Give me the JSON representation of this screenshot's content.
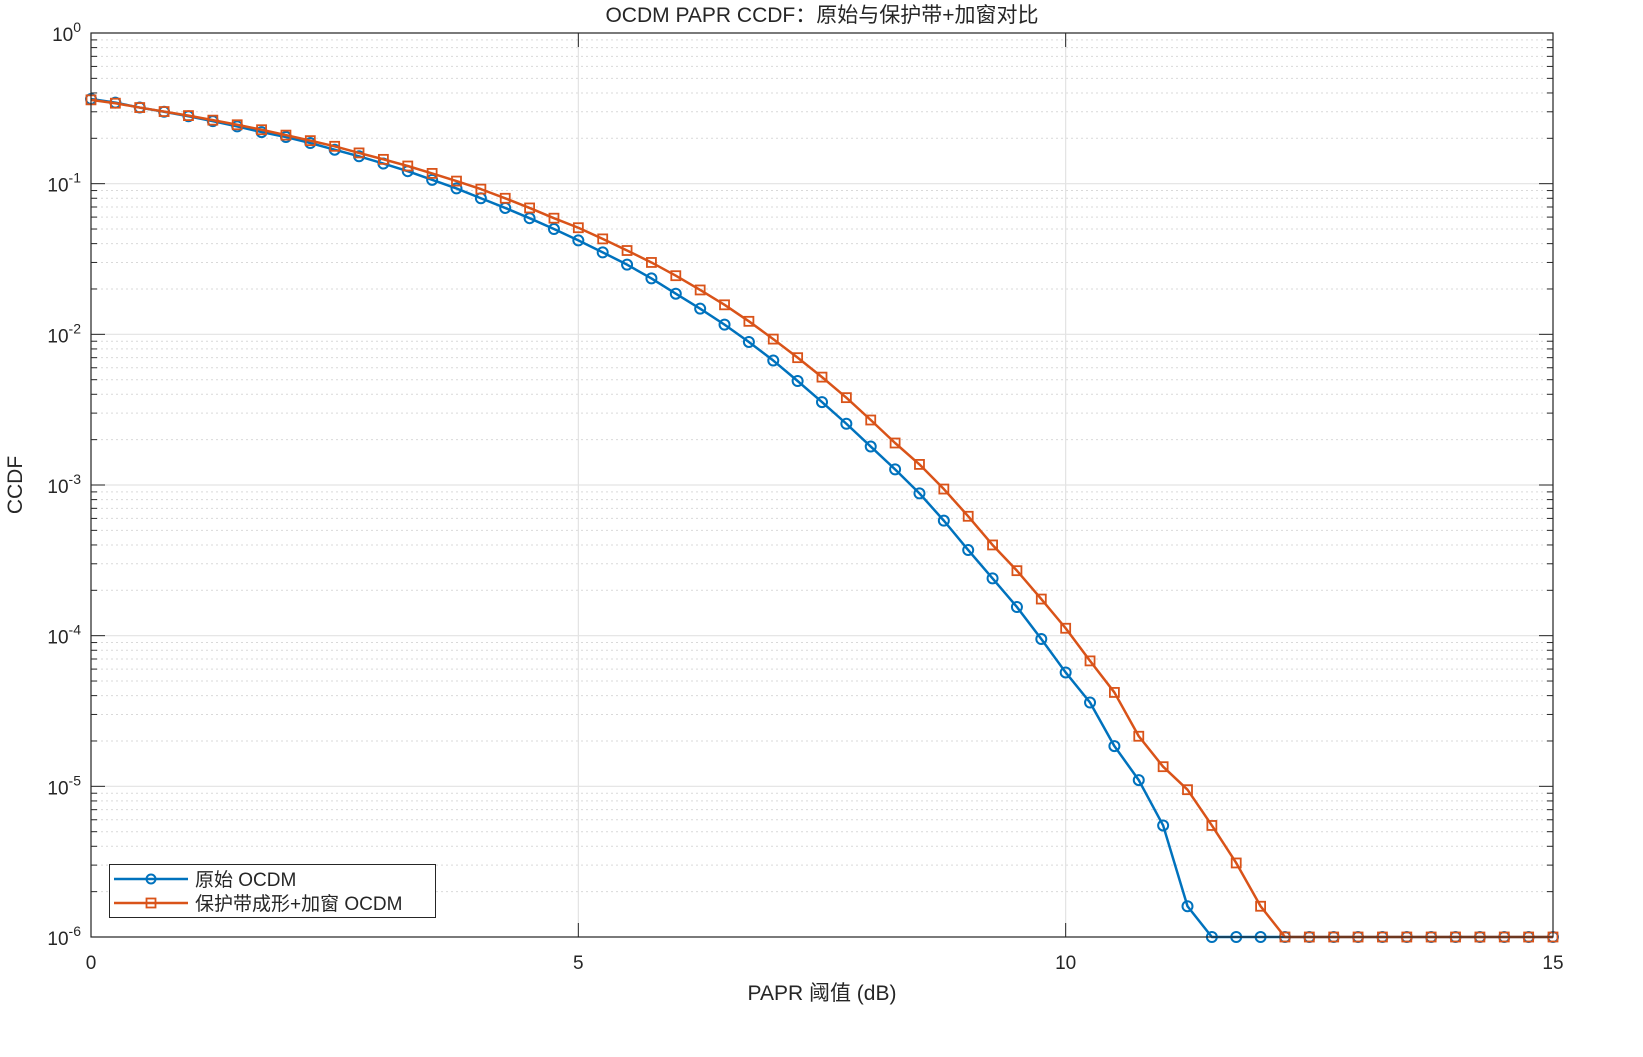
{
  "chart_data": {
    "type": "line",
    "title": "OCDM PAPR CCDF：原始与保护带+加窗对比",
    "xlabel": "PAPR 阈值 (dB)",
    "ylabel": "CCDF",
    "xlim": [
      0,
      15
    ],
    "ylim": [
      1e-06,
      1
    ],
    "yscale": "log",
    "grid": true,
    "minor_grid": true,
    "x_ticks": [
      0,
      5,
      10,
      15
    ],
    "x_tick_labels": [
      "0",
      "5",
      "10",
      "15"
    ],
    "y_ticks": [
      1,
      0.1,
      0.01,
      0.001,
      0.0001,
      1e-05,
      1e-06
    ],
    "y_tick_labels": [
      {
        "base": "10",
        "exp": "0"
      },
      {
        "base": "10",
        "exp": "-1"
      },
      {
        "base": "10",
        "exp": "-2"
      },
      {
        "base": "10",
        "exp": "-3"
      },
      {
        "base": "10",
        "exp": "-4"
      },
      {
        "base": "10",
        "exp": "-5"
      },
      {
        "base": "10",
        "exp": "-6"
      }
    ],
    "legend_position": "southwest",
    "x": [
      0,
      0.25,
      0.5,
      0.75,
      1,
      1.25,
      1.5,
      1.75,
      2,
      2.25,
      2.5,
      2.75,
      3,
      3.25,
      3.5,
      3.75,
      4,
      4.25,
      4.5,
      4.75,
      5,
      5.25,
      5.5,
      5.75,
      6,
      6.25,
      6.5,
      6.75,
      7,
      7.25,
      7.5,
      7.75,
      8,
      8.25,
      8.5,
      8.75,
      9,
      9.25,
      9.5,
      9.75,
      10,
      10.25,
      10.5,
      10.75,
      11,
      11.25,
      11.5,
      11.75,
      12,
      12.25,
      12.5,
      12.75,
      13,
      13.25,
      13.5,
      13.75,
      14,
      14.25,
      14.5,
      14.75,
      15
    ],
    "series": [
      {
        "name": "原始 OCDM",
        "color": "#0072BD",
        "marker": "circle",
        "values": [
          0.365,
          0.345,
          0.32,
          0.3,
          0.28,
          0.26,
          0.24,
          0.22,
          0.204,
          0.186,
          0.168,
          0.152,
          0.136,
          0.121,
          0.106,
          0.093,
          0.08,
          0.069,
          0.059,
          0.05,
          0.042,
          0.035,
          0.029,
          0.0235,
          0.0186,
          0.0148,
          0.0116,
          0.0089,
          0.0067,
          0.0049,
          0.00355,
          0.00255,
          0.0018,
          0.00127,
          0.00088,
          0.00058,
          0.00037,
          0.00024,
          0.000155,
          9.5e-05,
          5.7e-05,
          3.6e-05,
          1.85e-05,
          1.1e-05,
          5.5e-06,
          1.6e-06,
          1e-06,
          1e-06,
          1e-06,
          1e-06,
          1e-06,
          1e-06,
          1e-06,
          1e-06,
          1e-06,
          1e-06,
          1e-06,
          1e-06,
          1e-06,
          1e-06,
          1e-06
        ]
      },
      {
        "name": "保护带成形+加窗 OCDM",
        "color": "#D95319",
        "marker": "square",
        "values": [
          0.36,
          0.342,
          0.32,
          0.301,
          0.283,
          0.264,
          0.246,
          0.228,
          0.21,
          0.193,
          0.177,
          0.16,
          0.145,
          0.131,
          0.117,
          0.104,
          0.092,
          0.08,
          0.069,
          0.059,
          0.051,
          0.043,
          0.036,
          0.03,
          0.0245,
          0.0197,
          0.0157,
          0.0122,
          0.0093,
          0.007,
          0.0052,
          0.0038,
          0.0027,
          0.0019,
          0.00137,
          0.00094,
          0.00062,
          0.0004,
          0.00027,
          0.000175,
          0.000112,
          6.8e-05,
          4.2e-05,
          2.15e-05,
          1.35e-05,
          9.5e-06,
          5.5e-06,
          3.1e-06,
          1.6e-06,
          1e-06,
          1e-06,
          1e-06,
          1e-06,
          1e-06,
          1e-06,
          1e-06,
          1e-06,
          1e-06,
          1e-06,
          1e-06,
          1e-06
        ]
      }
    ]
  },
  "legend": {
    "items": [
      {
        "label": "原始 OCDM"
      },
      {
        "label": "保护带成形+加窗 OCDM"
      }
    ]
  }
}
